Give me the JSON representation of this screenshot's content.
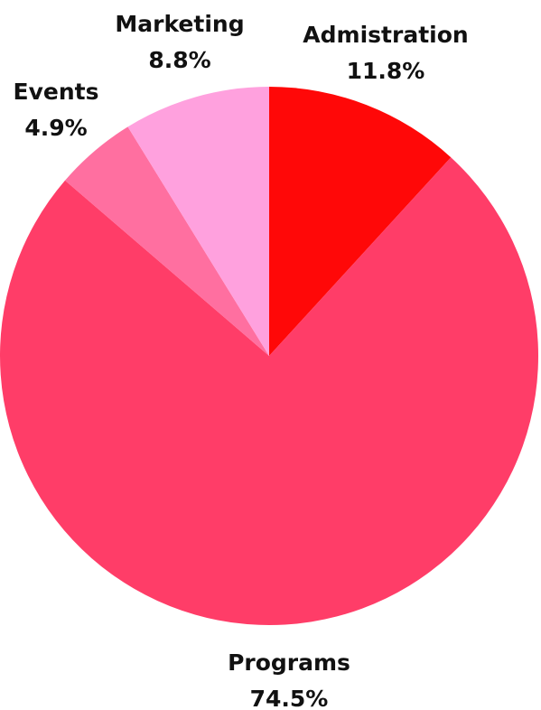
{
  "chart_data": {
    "type": "pie",
    "title": "",
    "start": "12 o'clock",
    "direction": "clockwise",
    "slices": [
      {
        "label": "Admistration",
        "value": 11.8,
        "value_label": "11.8%",
        "color": "#ff0808"
      },
      {
        "label": "Programs",
        "value": 74.5,
        "value_label": "74.5%",
        "color": "#ff3d68"
      },
      {
        "label": "Events",
        "value": 4.9,
        "value_label": "4.9%",
        "color": "#ff6fa0"
      },
      {
        "label": "Marketing",
        "value": 8.8,
        "value_label": "8.8%",
        "color": "#ffa1de"
      }
    ]
  }
}
